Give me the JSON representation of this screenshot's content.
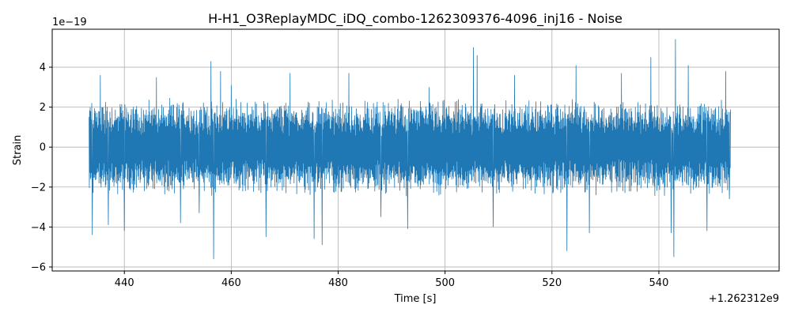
{
  "chart_data": {
    "type": "line",
    "title": "H-H1_O3ReplayMDC_iDQ_combo-1262309376-4096_inj16 - Noise",
    "xlabel": "Time [s]",
    "ylabel": "Strain",
    "x_offset_label": "+1.262312e9",
    "y_multiplier_label": "1e−19",
    "xlim": [
      426.5,
      562.5
    ],
    "ylim": [
      -6.2,
      5.9
    ],
    "x_ticks": [
      440,
      460,
      480,
      500,
      520,
      540
    ],
    "x_tick_labels": [
      "440",
      "460",
      "480",
      "500",
      "520",
      "540"
    ],
    "y_ticks": [
      -6,
      -4,
      -2,
      0,
      2,
      4
    ],
    "y_tick_labels": [
      "−6",
      "−4",
      "−2",
      "0",
      "2",
      "4"
    ],
    "grid": true,
    "series": [
      {
        "color": "#1f77b4",
        "x_range": [
          433.4,
          553.4
        ],
        "typical_envelope": [
          -2.5,
          2.5
        ],
        "peaks": [
          {
            "x": 433.7,
            "y": 1.8
          },
          {
            "x": 434.0,
            "y": -4.4
          },
          {
            "x": 435.5,
            "y": 3.6
          },
          {
            "x": 437.0,
            "y": -3.9
          },
          {
            "x": 440.0,
            "y": -4.2
          },
          {
            "x": 446.0,
            "y": 3.5
          },
          {
            "x": 450.5,
            "y": -3.8
          },
          {
            "x": 454.0,
            "y": -3.3
          },
          {
            "x": 456.2,
            "y": 4.3
          },
          {
            "x": 456.7,
            "y": -5.6
          },
          {
            "x": 458.0,
            "y": 3.8
          },
          {
            "x": 460.0,
            "y": 3.1
          },
          {
            "x": 466.5,
            "y": -4.5
          },
          {
            "x": 471.0,
            "y": 3.7
          },
          {
            "x": 475.5,
            "y": -4.6
          },
          {
            "x": 477.0,
            "y": -4.9
          },
          {
            "x": 482.0,
            "y": 3.7
          },
          {
            "x": 488.0,
            "y": -3.5
          },
          {
            "x": 493.0,
            "y": -4.1
          },
          {
            "x": 497.0,
            "y": 3.0
          },
          {
            "x": 505.3,
            "y": 5.0
          },
          {
            "x": 506.0,
            "y": 4.6
          },
          {
            "x": 509.0,
            "y": -4.0
          },
          {
            "x": 513.0,
            "y": 3.6
          },
          {
            "x": 522.8,
            "y": -5.2
          },
          {
            "x": 524.5,
            "y": 4.1
          },
          {
            "x": 527.0,
            "y": -4.3
          },
          {
            "x": 533.0,
            "y": 3.7
          },
          {
            "x": 538.5,
            "y": 4.5
          },
          {
            "x": 542.3,
            "y": -4.3
          },
          {
            "x": 542.8,
            "y": -5.5
          },
          {
            "x": 543.1,
            "y": 5.4
          },
          {
            "x": 545.5,
            "y": 4.1
          },
          {
            "x": 549.0,
            "y": -4.2
          },
          {
            "x": 552.5,
            "y": 3.8
          },
          {
            "x": 553.2,
            "y": -2.6
          }
        ]
      }
    ]
  }
}
